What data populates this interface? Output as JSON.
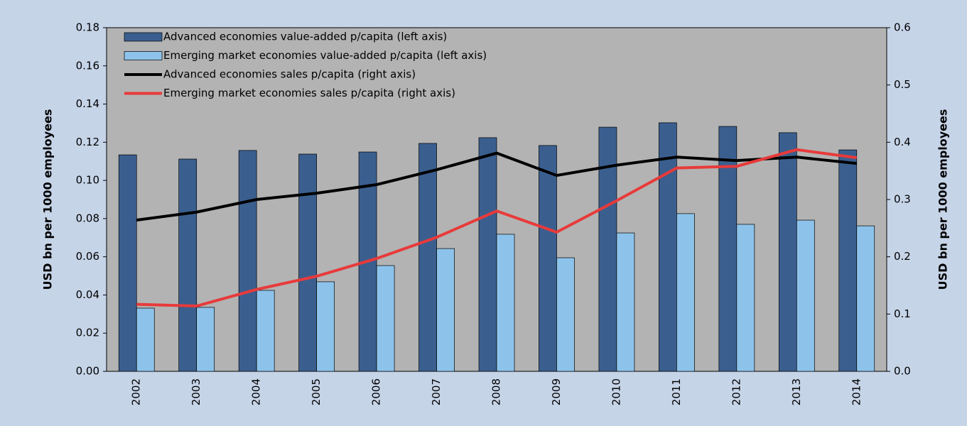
{
  "chart_data": {
    "type": "bar",
    "y_label": "USD bn per 1000 employees",
    "y2_label": "USD bn per 1000 employees",
    "categories": [
      "2002",
      "2003",
      "2004",
      "2005",
      "2006",
      "2007",
      "2008",
      "2009",
      "2010",
      "2011",
      "2012",
      "2013",
      "2014"
    ],
    "series": [
      {
        "name": "Advanced economies value-added p/capita (left axis)",
        "type": "bar",
        "color": "#3a5f8f",
        "values": [
          0.1134,
          0.1112,
          0.1157,
          0.1138,
          0.1149,
          0.1194,
          0.1224,
          0.1183,
          0.1279,
          0.1302,
          0.1283,
          0.125,
          0.116
        ]
      },
      {
        "name": "Emerging market economies value-added p/capita (left axis)",
        "type": "bar",
        "color": "#8dc3ea",
        "values": [
          0.0331,
          0.0335,
          0.0424,
          0.0469,
          0.0554,
          0.0643,
          0.0718,
          0.0595,
          0.0725,
          0.0826,
          0.077,
          0.0792,
          0.0762
        ]
      },
      {
        "name": "Advanced economies sales p/capita (right axis)",
        "type": "line",
        "axis": "y2",
        "color": "#000000",
        "values": [
          0.264,
          0.278,
          0.3,
          0.311,
          0.326,
          0.352,
          0.381,
          0.342,
          0.36,
          0.374,
          0.368,
          0.374,
          0.363
        ]
      },
      {
        "name": "Emerging market economies sales p/capita (right axis)",
        "type": "line",
        "axis": "y2",
        "color": "#e83a3a",
        "values": [
          0.117,
          0.114,
          0.143,
          0.166,
          0.197,
          0.234,
          0.28,
          0.243,
          0.298,
          0.355,
          0.358,
          0.387,
          0.373
        ]
      }
    ],
    "ylim": [
      0,
      0.18
    ],
    "yticks": [
      {
        "value": 0,
        "label": "0.00"
      },
      0.02,
      0.04,
      0.06,
      0.08,
      {
        "value": 0.1,
        "label": "0.10"
      },
      0.12,
      0.14,
      0.16,
      0.18
    ],
    "y2lim": [
      0,
      0.6
    ],
    "y2ticks": [
      {
        "value": 0,
        "label": "0.0"
      },
      0.1,
      0.2,
      0.3,
      0.4,
      0.5,
      0.6
    ],
    "grid": false
  }
}
